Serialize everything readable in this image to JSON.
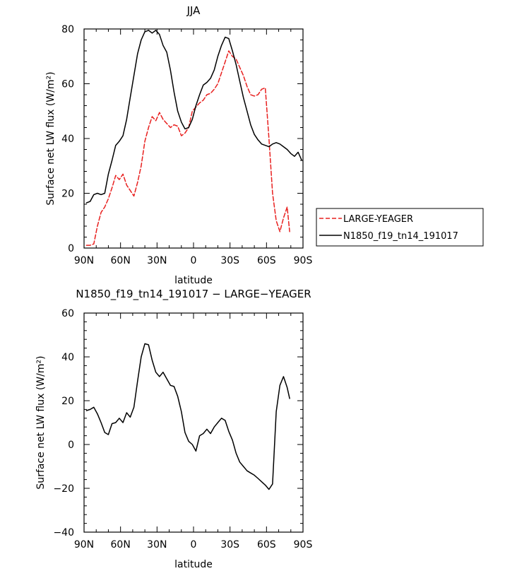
{
  "chart_data": [
    {
      "type": "line",
      "title": "JJA",
      "xlabel": "latitude",
      "ylabel": "Surface net LW flux (W/m²)",
      "xlim": [
        -90,
        90
      ],
      "ylim": [
        0,
        80
      ],
      "x_ticks": [
        -90,
        -60,
        -30,
        0,
        30,
        60,
        90
      ],
      "x_tick_labels": [
        "90N",
        "60N",
        "30N",
        "0",
        "30S",
        "60S",
        "90S"
      ],
      "y_ticks": [
        0,
        20,
        40,
        60,
        80
      ],
      "y_tick_labels": [
        "0",
        "20",
        "40",
        "60",
        "80"
      ],
      "legend": {
        "position": "outside-right",
        "entries": [
          "LARGE-YEAGER",
          "N1850_f19_tn14_191017"
        ]
      },
      "series": [
        {
          "name": "LARGE-YEAGER",
          "color": "#e8201f",
          "dash": "dashed",
          "x": [
            -88,
            -85,
            -82,
            -79,
            -76,
            -73,
            -70,
            -67,
            -64,
            -61,
            -58,
            -55,
            -52,
            -49,
            -46,
            -43,
            -40,
            -37,
            -34,
            -31,
            -28,
            -25,
            -22,
            -19,
            -16,
            -13,
            -10,
            -7,
            -4,
            -1,
            2,
            5,
            8,
            11,
            14,
            17,
            20,
            23,
            26,
            29,
            32,
            35,
            38,
            41,
            44,
            47,
            50,
            53,
            56,
            59,
            62,
            65,
            68,
            71,
            74,
            77,
            79
          ],
          "values": [
            1,
            1,
            1.5,
            8,
            13,
            15,
            18,
            22,
            26.5,
            25,
            27,
            23,
            21,
            19,
            24,
            30,
            39,
            44,
            48,
            46.5,
            49.5,
            47,
            45.5,
            44,
            45,
            44.5,
            41,
            42,
            44,
            50,
            51.5,
            53,
            54,
            56,
            56.5,
            58,
            60,
            64,
            68,
            72,
            70,
            69,
            66,
            63,
            59,
            56,
            55.5,
            56,
            58,
            58.5,
            40,
            20,
            10,
            6,
            11,
            15,
            6
          ]
        },
        {
          "name": "N1850_f19_tn14_191017",
          "color": "#000000",
          "dash": "solid",
          "x": [
            -88,
            -85,
            -82,
            -79,
            -76,
            -73,
            -70,
            -67,
            -64,
            -61,
            -58,
            -55,
            -52,
            -49,
            -46,
            -43,
            -40,
            -37,
            -34,
            -31,
            -28,
            -25,
            -22,
            -19,
            -16,
            -13,
            -10,
            -7,
            -4,
            -1,
            2,
            5,
            8,
            11,
            14,
            17,
            20,
            23,
            26,
            29,
            32,
            35,
            38,
            41,
            44,
            47,
            50,
            53,
            56,
            59,
            62,
            65,
            68,
            71,
            74,
            77,
            80,
            83,
            86,
            89
          ],
          "values": [
            16.5,
            17,
            19.5,
            20,
            19.5,
            20,
            27,
            32,
            37.5,
            39,
            41,
            47,
            55,
            63,
            71,
            76,
            79,
            79.5,
            78.5,
            79.5,
            78,
            74,
            71.5,
            65,
            57,
            50,
            46,
            43.5,
            44,
            47,
            52,
            56,
            59.5,
            60.5,
            62,
            65,
            70,
            74,
            77,
            76.5,
            72,
            67,
            61,
            55,
            50,
            45,
            41.5,
            39.5,
            38,
            37.5,
            37,
            38,
            38.5,
            38,
            37,
            36,
            34.5,
            33.5,
            35,
            32
          ]
        }
      ]
    },
    {
      "type": "line",
      "title": "N1850_f19_tn14_191017 − LARGE−YEAGER",
      "xlabel": "latitude",
      "ylabel": "Surface net LW flux (W/m²)",
      "xlim": [
        -90,
        90
      ],
      "ylim": [
        -40,
        60
      ],
      "x_ticks": [
        -90,
        -60,
        -30,
        0,
        30,
        60,
        90
      ],
      "x_tick_labels": [
        "90N",
        "60N",
        "30N",
        "0",
        "30S",
        "60S",
        "90S"
      ],
      "y_ticks": [
        -40,
        -20,
        0,
        20,
        40,
        60
      ],
      "y_tick_labels": [
        "−40",
        "−20",
        "0",
        "20",
        "40",
        "60"
      ],
      "series": [
        {
          "color": "#000000",
          "dash": "solid",
          "x": [
            -88,
            -85,
            -82,
            -79,
            -76,
            -73,
            -70,
            -67,
            -64,
            -61,
            -58,
            -55,
            -52,
            -49,
            -46,
            -43,
            -40,
            -37,
            -34,
            -31,
            -28,
            -25,
            -22,
            -19,
            -16,
            -13,
            -10,
            -7,
            -4,
            -1,
            2,
            5,
            8,
            11,
            14,
            17,
            20,
            23,
            26,
            29,
            32,
            35,
            38,
            41,
            44,
            47,
            50,
            53,
            56,
            59,
            62,
            65,
            68,
            71,
            74,
            77,
            79
          ],
          "values": [
            15.5,
            16,
            17,
            14,
            10,
            5.5,
            4.5,
            9.5,
            10,
            12,
            10,
            14.5,
            12.5,
            17,
            29,
            40,
            46,
            45.5,
            38.5,
            33,
            31,
            33,
            30,
            27,
            26.5,
            22,
            15,
            5.5,
            1.5,
            0,
            -3,
            4,
            5,
            7,
            5,
            8,
            10,
            12,
            11,
            6,
            2,
            -4,
            -8,
            -10,
            -12,
            -13,
            -14,
            -15.5,
            -17,
            -18.5,
            -20.5,
            -18,
            15,
            27,
            31,
            26,
            21
          ]
        }
      ]
    }
  ]
}
